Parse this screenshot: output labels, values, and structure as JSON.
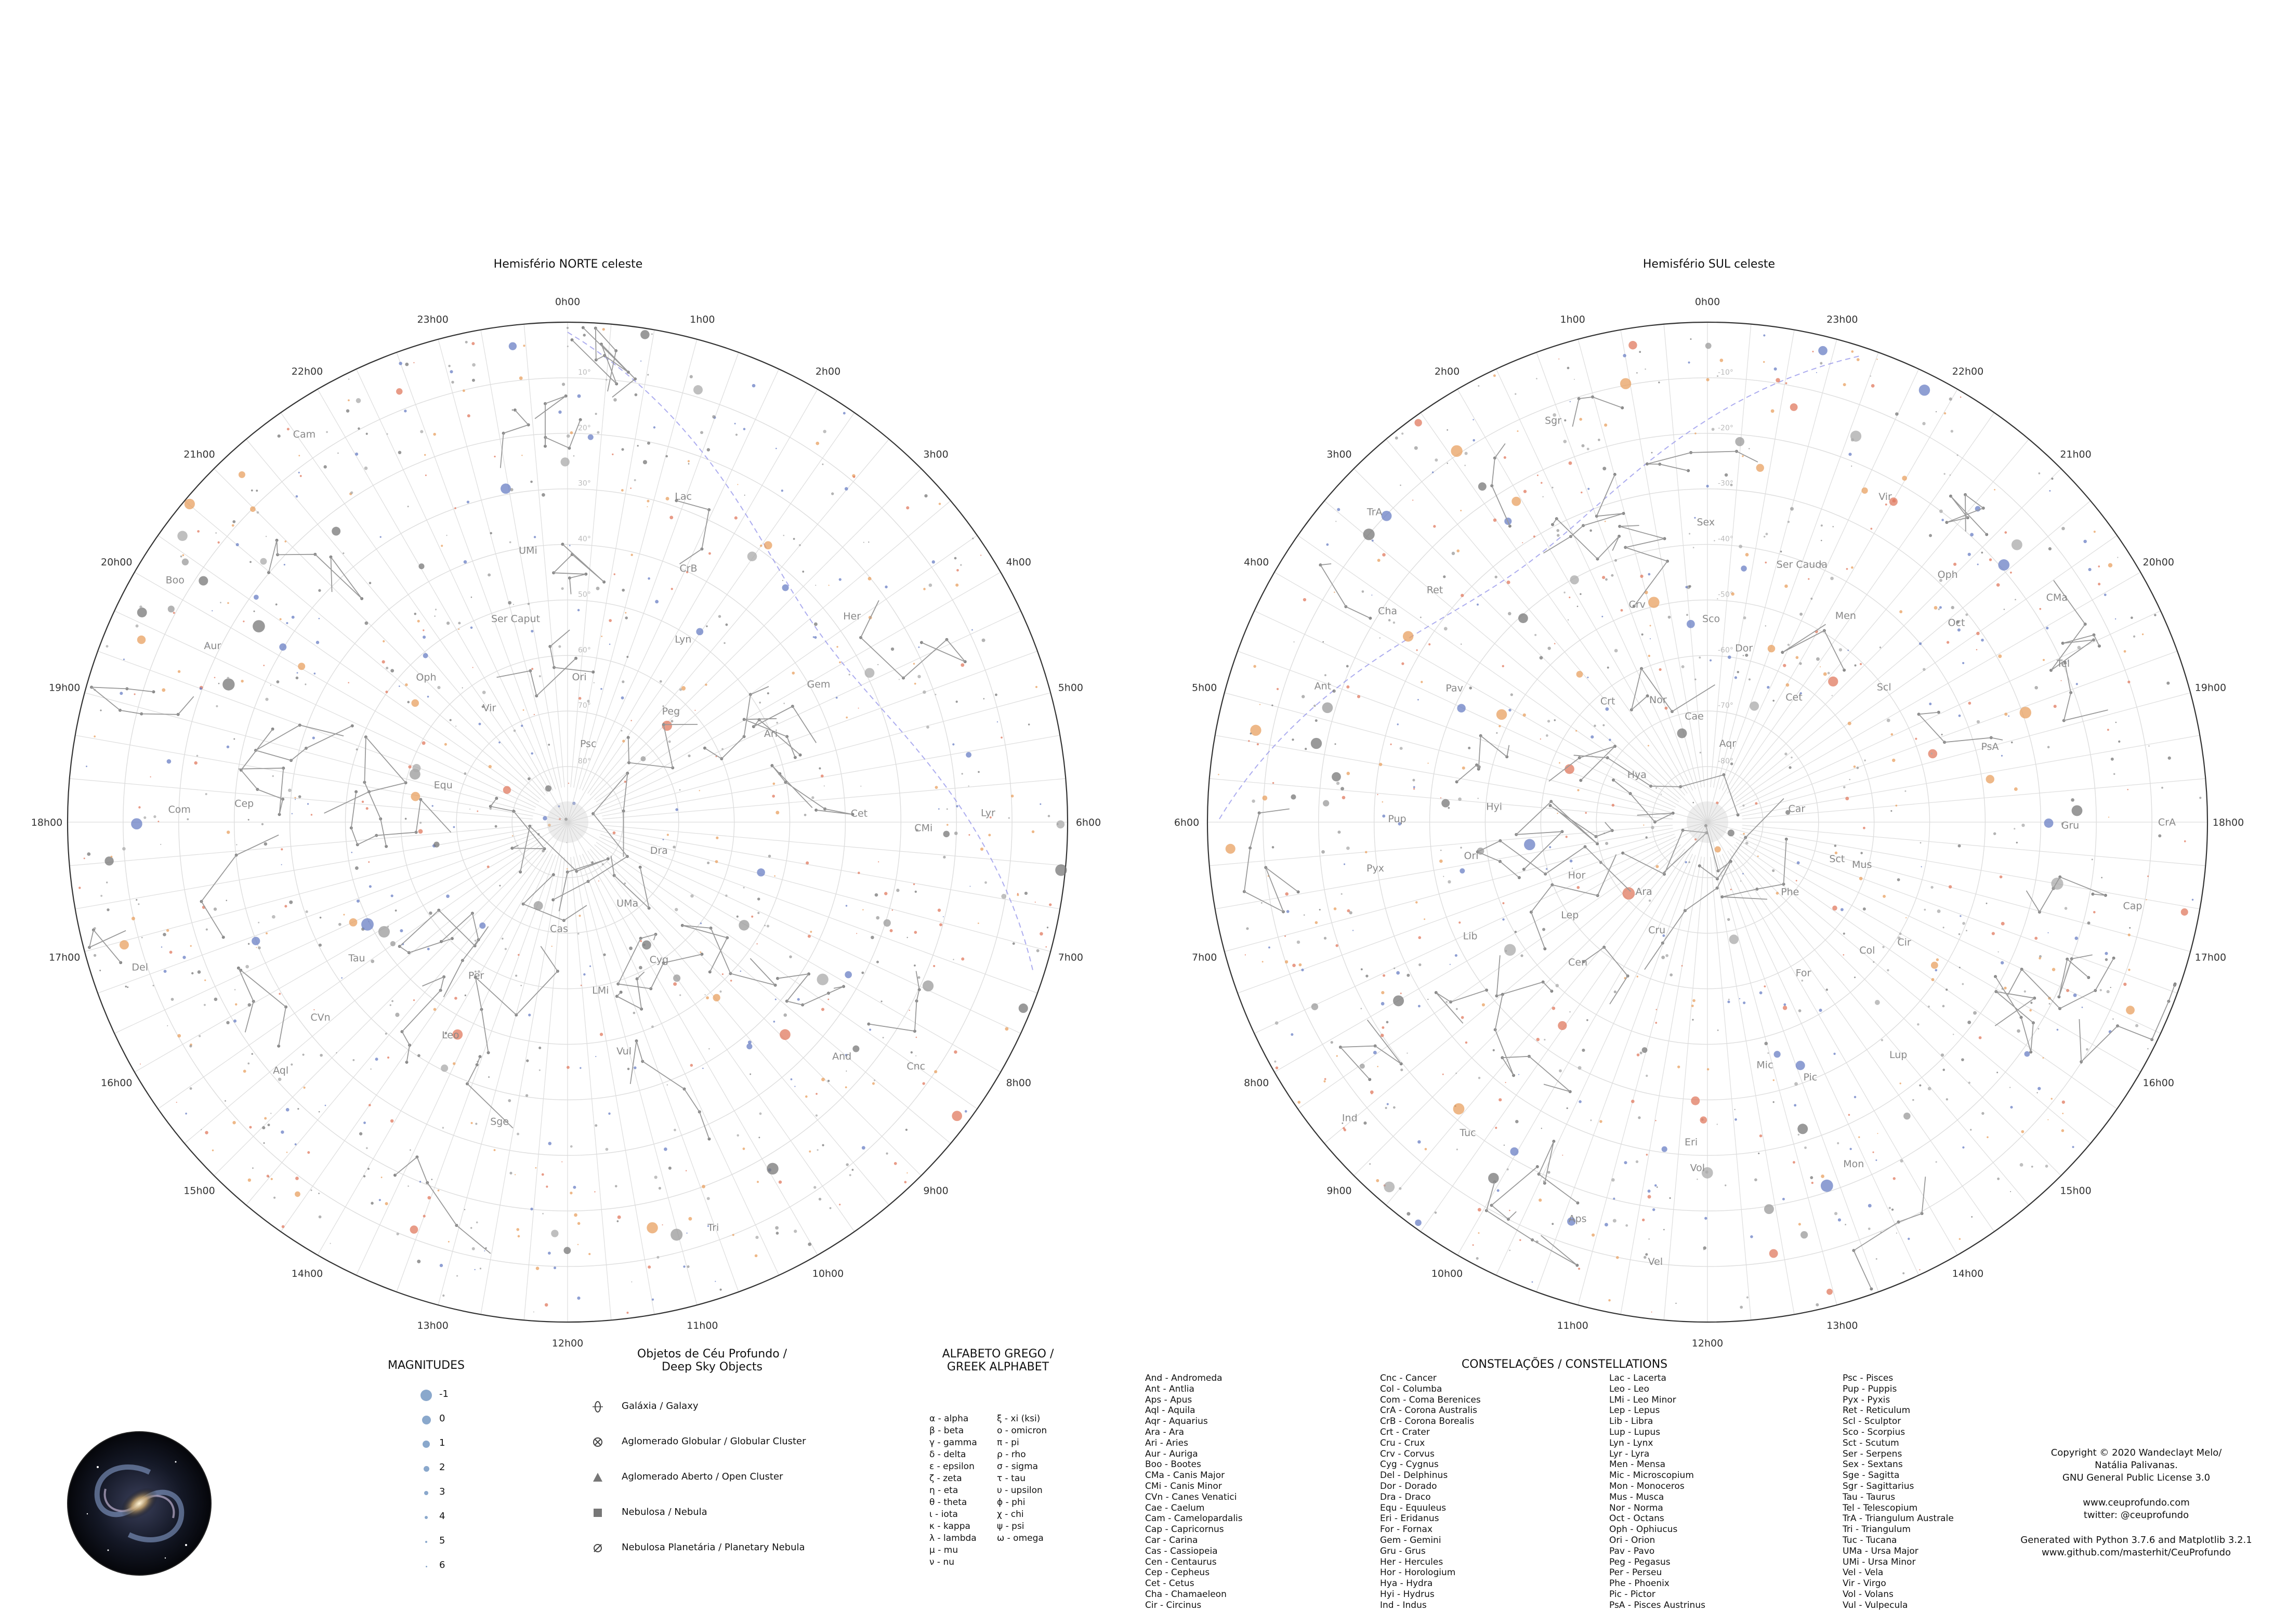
{
  "north": {
    "title": "Hemisfério NORTE celeste",
    "hours": [
      "0h00",
      "1h00",
      "2h00",
      "3h00",
      "4h00",
      "5h00",
      "6h00",
      "7h00",
      "8h00",
      "9h00",
      "10h00",
      "11h00",
      "12h00",
      "13h00",
      "14h00",
      "15h00",
      "16h00",
      "17h00",
      "18h00",
      "19h00",
      "20h00",
      "21h00",
      "22h00",
      "23h00"
    ],
    "constellations": [
      "Psc",
      "Peg",
      "Ari",
      "Cet",
      "And",
      "Tri",
      "Cas",
      "Per",
      "Tau",
      "Cep",
      "Aur",
      "Cam",
      "Ori",
      "Lyn",
      "Gem",
      "CMi",
      "Cnc",
      "UMa",
      "LMi",
      "Leo",
      "CVn",
      "Com",
      "Boo",
      "Vir",
      "Ser Caput",
      "CrB",
      "Her",
      "Lyr",
      "Dra",
      "Cyg",
      "Vul",
      "Sge",
      "Aql",
      "Del",
      "Equ",
      "Oph",
      "UMi",
      "Lac"
    ],
    "dec_labels": [
      "10°",
      "20°",
      "30°",
      "40°",
      "50°",
      "60°",
      "70°",
      "80°"
    ]
  },
  "south": {
    "title": "Hemisfério SUL celeste",
    "hours": [
      "0h00",
      "23h00",
      "22h00",
      "21h00",
      "20h00",
      "19h00",
      "18h00",
      "17h00",
      "16h00",
      "15h00",
      "14h00",
      "13h00",
      "12h00",
      "11h00",
      "10h00",
      "9h00",
      "8h00",
      "7h00",
      "6h00",
      "5h00",
      "4h00",
      "3h00",
      "2h00",
      "1h00"
    ],
    "constellations": [
      "Aqr",
      "Cet",
      "Scl",
      "PsA",
      "Gru",
      "Cap",
      "Phe",
      "For",
      "Mic",
      "Eri",
      "Tuc",
      "Ind",
      "Hor",
      "Hyi",
      "Pav",
      "Ret",
      "Sgr",
      "Cae",
      "Dor",
      "Men",
      "Oct",
      "Tel",
      "CrA",
      "Sct",
      "Col",
      "Pic",
      "Vol",
      "Aps",
      "Ara",
      "Lep",
      "Ori",
      "Pup",
      "Cha",
      "TrA",
      "Nor",
      "Sco",
      "Ser Cauda",
      "Oph",
      "CMa",
      "Car",
      "Mus",
      "Cir",
      "Lup",
      "Mon",
      "Vel",
      "Cru",
      "Cen",
      "Lib",
      "Pyx",
      "Ant",
      "Hya",
      "Crt",
      "Crv",
      "Sex",
      "Vir"
    ],
    "dec_labels": [
      "-10°",
      "-20°",
      "-30°",
      "-40°",
      "-50°",
      "-60°",
      "-70°",
      "-80°"
    ]
  },
  "magnitudes": {
    "title": "MAGNITUDES",
    "items": [
      "-1",
      "0",
      "1",
      "2",
      "3",
      "4",
      "5",
      "6"
    ]
  },
  "dso": {
    "title_line1": "Objetos de Céu Profundo /",
    "title_line2": "Deep Sky Objects",
    "items": [
      {
        "icon": "galaxy-icon",
        "label": "Galáxia / Galaxy"
      },
      {
        "icon": "globular-cluster-icon",
        "label": "Aglomerado Globular / Globular Cluster"
      },
      {
        "icon": "open-cluster-icon",
        "label": "Aglomerado Aberto / Open Cluster"
      },
      {
        "icon": "nebula-icon",
        "label": "Nebulosa / Nebula"
      },
      {
        "icon": "planetary-nebula-icon",
        "label": "Nebulosa Planetária / Planetary Nebula"
      }
    ]
  },
  "greek": {
    "title_line1": "ALFABETO GREGO /",
    "title_line2": "GREEK ALPHABET",
    "col1": [
      "α - alpha",
      "β - beta",
      "γ - gamma",
      "δ - delta",
      "ε - epsilon",
      "ζ - zeta",
      "η - eta",
      "θ - theta",
      "ι - iota",
      "κ - kappa",
      "λ - lambda",
      "μ - mu",
      "ν - nu"
    ],
    "col2": [
      "ξ - xi (ksi)",
      "ο - omicron",
      "π - pi",
      "ρ - rho",
      "σ - sigma",
      "τ - tau",
      "υ - upsilon",
      "ϕ - phi",
      "χ - chi",
      "ψ - psi",
      "ω - omega"
    ]
  },
  "constellation_list": {
    "title": "CONSTELAÇÕES / CONSTELLATIONS",
    "col1": [
      "And - Andromeda",
      "Ant - Antlia",
      "Aps - Apus",
      "Aql - Aquila",
      "Aqr - Aquarius",
      "Ara - Ara",
      "Ari - Aries",
      "Aur - Auriga",
      "Boo - Bootes",
      "CMa - Canis Major",
      "CMi - Canis Minor",
      "CVn - Canes Venatici",
      "Cae - Caelum",
      "Cam - Camelopardalis",
      "Cap - Capricornus",
      "Car - Carina",
      "Cas - Cassiopeia",
      "Cen - Centaurus",
      "Cep - Cepheus",
      "Cet - Cetus",
      "Cha - Chamaeleon",
      "Cir - Circinus"
    ],
    "col2": [
      "Cnc - Cancer",
      "Col - Columba",
      "Com - Coma Berenices",
      "CrA - Corona Australis",
      "CrB - Corona Borealis",
      "Crt - Crater",
      "Cru - Crux",
      "Crv - Corvus",
      "Cyg - Cygnus",
      "Del - Delphinus",
      "Dor - Dorado",
      "Dra - Draco",
      "Equ - Equuleus",
      "Eri - Eridanus",
      "For - Fornax",
      "Gem - Gemini",
      "Gru - Grus",
      "Her - Hercules",
      "Hor - Horologium",
      "Hya - Hydra",
      "Hyi - Hydrus",
      "Ind - Indus"
    ],
    "col3": [
      "Lac - Lacerta",
      "Leo - Leo",
      "LMi - Leo Minor",
      "Lep - Lepus",
      "Lib - Libra",
      "Lup - Lupus",
      "Lyn - Lynx",
      "Lyr - Lyra",
      "Men - Mensa",
      "Mic - Microscopium",
      "Mon - Monoceros",
      "Mus - Musca",
      "Nor - Norma",
      "Oct - Octans",
      "Oph - Ophiucus",
      "Ori - Orion",
      "Pav - Pavo",
      "Peg - Pegasus",
      "Per - Perseu",
      "Phe - Phoenix",
      "Pic - Pictor",
      "PsA - Pisces Austrinus"
    ],
    "col4": [
      "Psc - Pisces",
      "Pup - Puppis",
      "Pyx - Pyxis",
      "Ret - Reticulum",
      "Scl - Sculptor",
      "Sco - Scorpius",
      "Sct - Scutum",
      "Ser - Serpens",
      "Sex - Sextans",
      "Sge - Sagitta",
      "Sgr - Sagittarius",
      "Tau - Taurus",
      "Tel - Telescopium",
      "TrA - Triangulum Australe",
      "Tri - Triangulum",
      "Tuc - Tucana",
      "UMa - Ursa Major",
      "UMi - Ursa Minor",
      "Vel - Vela",
      "Vir - Virgo",
      "Vol - Volans",
      "Vul - Vulpecula"
    ]
  },
  "credits": {
    "lines": [
      "Copyright © 2020 Wandeclayt Melo/",
      "Natália Palivanas.",
      "GNU General Public License 3.0",
      "",
      "www.ceuprofundo.com",
      "twitter: @ceuprofundo",
      "",
      "Generated with Python 3.7.6 and Matplotlib 3.2.1",
      "www.github.com/masterhit/CeuProfundo"
    ]
  },
  "colors": {
    "grid": "#dddddd",
    "ecliptic": "#8a8ae8",
    "lines": "#999999",
    "star_blue": "#6a7fc4",
    "star_red": "#e07a5f",
    "star_orange": "#e8a060"
  }
}
